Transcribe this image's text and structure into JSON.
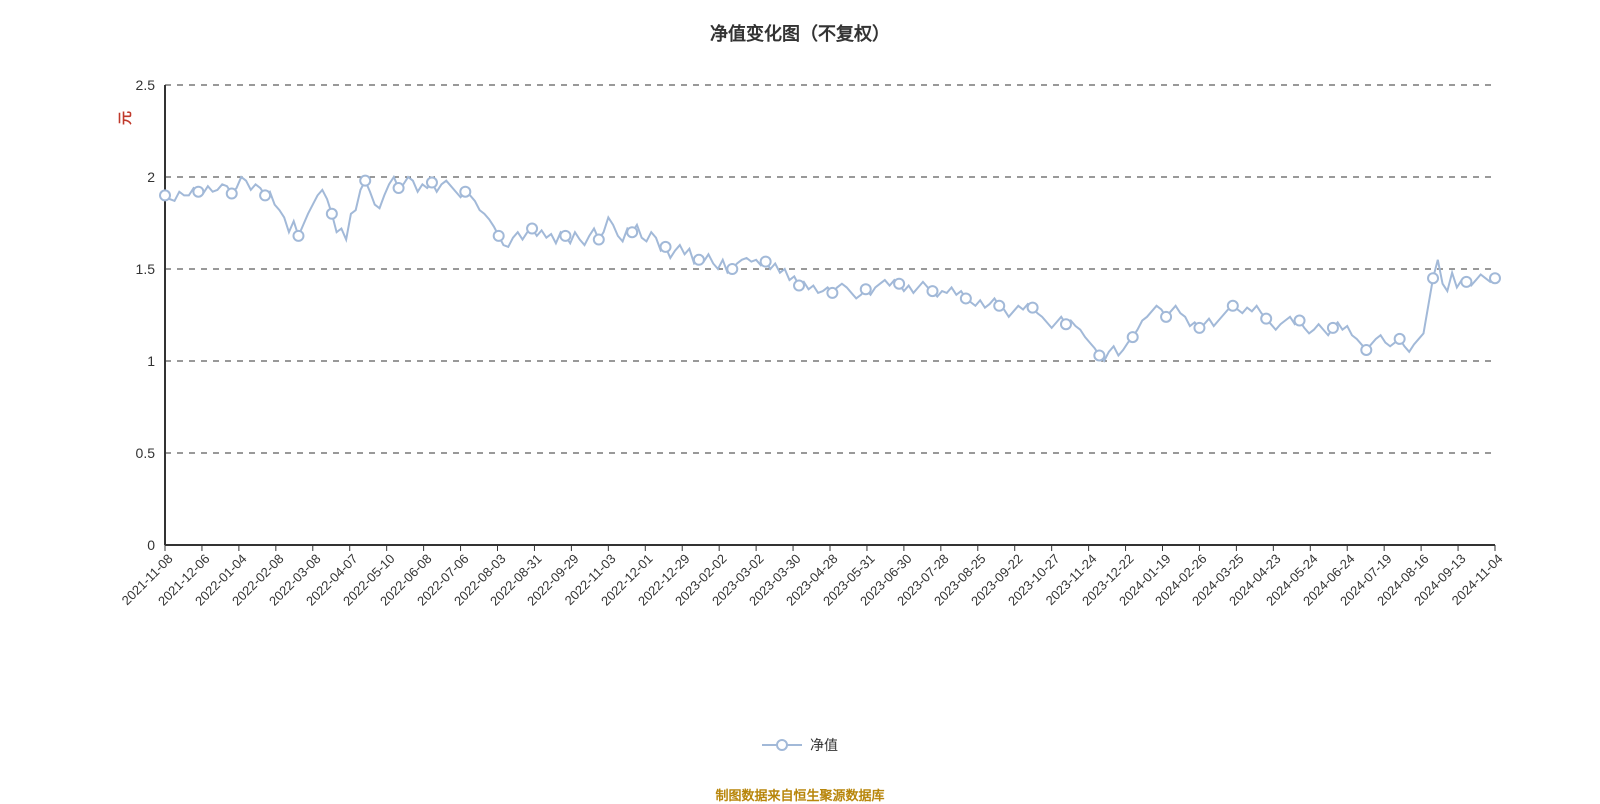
{
  "chart": {
    "type": "line",
    "title": "净值变化图（不复权）",
    "title_fontsize": 18,
    "title_color": "#333333",
    "background_color": "#ffffff",
    "plot_background": "#ffffff",
    "y_axis_title": "元",
    "y_axis_title_color": "#c0392b",
    "ylim": [
      0,
      2.5
    ],
    "yticks": [
      0,
      0.5,
      1,
      1.5,
      2,
      2.5
    ],
    "ytick_labels": [
      "0",
      "0.5",
      "1",
      "1.5",
      "2",
      "2.5"
    ],
    "tick_fontsize": 14,
    "tick_color": "#333333",
    "grid_color": "#333333",
    "grid_dash": "6 6",
    "grid_width": 1,
    "axis_color": "#333333",
    "axis_width": 2,
    "x_labels": [
      "2021-11-08",
      "2021-12-06",
      "2022-01-04",
      "2022-02-08",
      "2022-03-08",
      "2022-04-07",
      "2022-05-10",
      "2022-06-08",
      "2022-07-06",
      "2022-08-03",
      "2022-08-31",
      "2022-09-29",
      "2022-11-03",
      "2022-12-01",
      "2022-12-29",
      "2023-02-02",
      "2023-03-02",
      "2023-03-30",
      "2023-04-28",
      "2023-05-31",
      "2023-06-30",
      "2023-07-28",
      "2023-08-25",
      "2023-09-22",
      "2023-10-27",
      "2023-11-24",
      "2023-12-22",
      "2024-01-19",
      "2024-02-26",
      "2024-03-25",
      "2024-04-23",
      "2024-05-24",
      "2024-06-24",
      "2024-07-19",
      "2024-08-16",
      "2024-09-13",
      "2024-11-04"
    ],
    "x_label_fontsize": 13,
    "x_label_rotation": -45,
    "series": {
      "name": "净值",
      "line_color": "#a2b9d8",
      "line_width": 2,
      "marker_fill": "#ffffff",
      "marker_stroke": "#a2b9d8",
      "marker_stroke_width": 2,
      "marker_radius": 5,
      "values": [
        1.9,
        1.88,
        1.87,
        1.92,
        1.9,
        1.9,
        1.94,
        1.92,
        1.91,
        1.95,
        1.92,
        1.93,
        1.96,
        1.95,
        1.91,
        1.94,
        2.0,
        1.98,
        1.93,
        1.96,
        1.94,
        1.9,
        1.92,
        1.85,
        1.82,
        1.78,
        1.7,
        1.76,
        1.68,
        1.74,
        1.8,
        1.85,
        1.9,
        1.93,
        1.88,
        1.8,
        1.7,
        1.72,
        1.66,
        1.8,
        1.82,
        1.93,
        1.98,
        1.92,
        1.85,
        1.83,
        1.9,
        1.96,
        2.0,
        1.94,
        1.96,
        2.0,
        1.98,
        1.92,
        1.96,
        1.94,
        1.97,
        1.92,
        1.96,
        1.98,
        1.95,
        1.92,
        1.89,
        1.92,
        1.9,
        1.87,
        1.82,
        1.8,
        1.77,
        1.73,
        1.68,
        1.63,
        1.62,
        1.67,
        1.7,
        1.66,
        1.7,
        1.72,
        1.68,
        1.71,
        1.67,
        1.69,
        1.64,
        1.7,
        1.68,
        1.64,
        1.7,
        1.66,
        1.63,
        1.68,
        1.72,
        1.66,
        1.7,
        1.78,
        1.74,
        1.68,
        1.65,
        1.72,
        1.7,
        1.74,
        1.67,
        1.65,
        1.7,
        1.67,
        1.6,
        1.62,
        1.56,
        1.6,
        1.63,
        1.58,
        1.61,
        1.53,
        1.55,
        1.54,
        1.58,
        1.53,
        1.5,
        1.55,
        1.48,
        1.5,
        1.53,
        1.55,
        1.56,
        1.54,
        1.55,
        1.52,
        1.54,
        1.5,
        1.53,
        1.48,
        1.5,
        1.44,
        1.46,
        1.41,
        1.43,
        1.39,
        1.41,
        1.37,
        1.38,
        1.4,
        1.37,
        1.4,
        1.42,
        1.4,
        1.37,
        1.34,
        1.36,
        1.39,
        1.36,
        1.4,
        1.42,
        1.44,
        1.41,
        1.44,
        1.42,
        1.38,
        1.41,
        1.37,
        1.4,
        1.43,
        1.4,
        1.38,
        1.35,
        1.38,
        1.37,
        1.4,
        1.36,
        1.38,
        1.34,
        1.32,
        1.3,
        1.33,
        1.29,
        1.31,
        1.34,
        1.3,
        1.28,
        1.24,
        1.27,
        1.3,
        1.28,
        1.31,
        1.29,
        1.26,
        1.24,
        1.21,
        1.18,
        1.21,
        1.24,
        1.2,
        1.22,
        1.19,
        1.17,
        1.13,
        1.1,
        1.07,
        1.03,
        1.0,
        1.05,
        1.08,
        1.03,
        1.06,
        1.1,
        1.13,
        1.17,
        1.22,
        1.24,
        1.27,
        1.3,
        1.28,
        1.24,
        1.27,
        1.3,
        1.26,
        1.24,
        1.19,
        1.21,
        1.18,
        1.2,
        1.23,
        1.19,
        1.22,
        1.25,
        1.28,
        1.3,
        1.28,
        1.26,
        1.29,
        1.27,
        1.3,
        1.26,
        1.23,
        1.2,
        1.17,
        1.2,
        1.22,
        1.24,
        1.2,
        1.22,
        1.18,
        1.15,
        1.17,
        1.2,
        1.17,
        1.14,
        1.18,
        1.21,
        1.17,
        1.19,
        1.14,
        1.12,
        1.09,
        1.06,
        1.09,
        1.12,
        1.14,
        1.1,
        1.08,
        1.1,
        1.12,
        1.08,
        1.05,
        1.09,
        1.12,
        1.15,
        1.3,
        1.45,
        1.55,
        1.42,
        1.38,
        1.48,
        1.4,
        1.44,
        1.43,
        1.41,
        1.44,
        1.47,
        1.45,
        1.43,
        1.45
      ],
      "marker_step": 7
    },
    "legend": {
      "label": "净值",
      "fontsize": 14,
      "text_color": "#333333"
    },
    "footer": {
      "text": "制图数据来自恒生聚源数据库",
      "color": "#b8860b",
      "fontsize": 13
    }
  }
}
